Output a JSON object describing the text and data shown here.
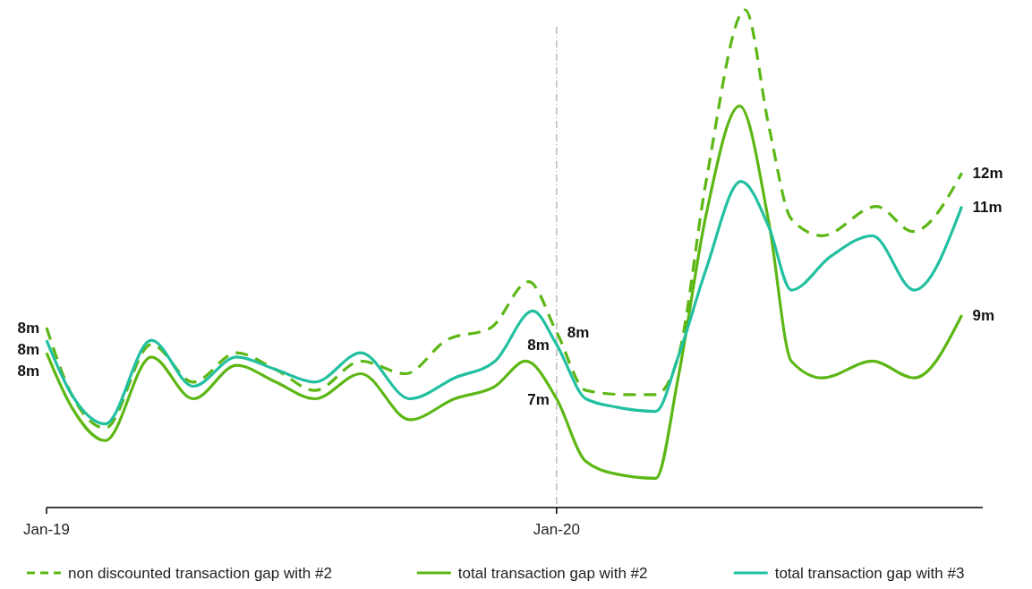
{
  "chart_data": {
    "type": "line",
    "tick_labels": "x",
    "legend": "bottom",
    "x": [
      "2019-01-01",
      "2019-01-19",
      "2019-02-12",
      "2019-03-17",
      "2019-04-16",
      "2019-05-17",
      "2019-06-14",
      "2019-07-12",
      "2019-08-14",
      "2019-09-15",
      "2019-10-14",
      "2019-11-15",
      "2019-12-12",
      "2020-01-01",
      "2020-01-22",
      "2020-02-20",
      "2020-03-12",
      "2020-03-28",
      "2020-04-17",
      "2020-05-15",
      "2020-06-01",
      "2020-06-17",
      "2020-07-09",
      "2020-08-17",
      "2020-09-12",
      "2020-10-17"
    ],
    "xlim": [
      "2019-01-01",
      "2020-11-01"
    ],
    "xticks": [
      {
        "value": "2019-01-01",
        "label": "Jan-19"
      },
      {
        "value": "2020-01-01",
        "label": "Jan-20"
      }
    ],
    "ref_lines": [
      {
        "axis": "x",
        "value": "2020-01-01",
        "label": null,
        "color": "#bbbbbb",
        "line_style": "dashed"
      }
    ],
    "series": [
      {
        "name": "non discounted transaction gap with #2",
        "color": "#5cb714",
        "line_style": "dashed",
        "values": [
          8.3,
          6.7,
          5.9,
          7.9,
          7.0,
          7.7,
          7.3,
          6.8,
          7.5,
          7.2,
          8.0,
          8.3,
          9.4,
          8.2,
          6.8,
          6.7,
          6.7,
          7.6,
          11.8,
          15.9,
          13.1,
          10.9,
          10.5,
          11.2,
          10.6,
          12.0
        ],
        "value_labels": [
          "8m",
          null,
          null,
          null,
          null,
          null,
          null,
          null,
          null,
          null,
          null,
          null,
          null,
          "8m",
          null,
          null,
          null,
          null,
          null,
          null,
          null,
          null,
          null,
          null,
          null,
          "12m"
        ]
      },
      {
        "name": "total transaction gap with #2",
        "color": "#5cb714",
        "line_style": "solid",
        "x": [
          "2019-01-01",
          "2019-01-19",
          "2019-02-12",
          "2019-03-17",
          "2019-04-16",
          "2019-05-17",
          "2019-06-14",
          "2019-07-12",
          "2019-08-14",
          "2019-09-18",
          "2019-10-20",
          "2019-11-18",
          "2019-12-10",
          "2020-01-01",
          "2020-01-22",
          "2020-02-13",
          "2020-03-12",
          "2020-03-28",
          "2020-04-17",
          "2020-05-11",
          "2020-06-01",
          "2020-06-17",
          "2020-07-09",
          "2020-08-14",
          "2020-09-13",
          "2020-10-17"
        ],
        "values": [
          7.7,
          6.4,
          5.6,
          7.6,
          6.6,
          7.4,
          7.0,
          6.6,
          7.2,
          6.1,
          6.6,
          6.9,
          7.5,
          6.6,
          5.1,
          4.8,
          4.7,
          7.1,
          11.0,
          13.6,
          10.8,
          7.5,
          7.1,
          7.5,
          7.1,
          8.6
        ],
        "value_labels": [
          "8m",
          null,
          null,
          null,
          null,
          null,
          null,
          null,
          null,
          null,
          null,
          null,
          null,
          "7m",
          null,
          null,
          null,
          null,
          null,
          null,
          null,
          null,
          null,
          null,
          null,
          "9m"
        ]
      },
      {
        "name": "total transaction gap with #3",
        "color": "#22c0a0",
        "line_style": "solid",
        "x": [
          "2019-01-01",
          "2019-01-19",
          "2019-02-12",
          "2019-03-17",
          "2019-04-16",
          "2019-05-17",
          "2019-06-14",
          "2019-07-12",
          "2019-08-14",
          "2019-09-18",
          "2019-10-20",
          "2019-11-18",
          "2019-12-15",
          "2020-01-01",
          "2020-01-22",
          "2020-02-13",
          "2020-03-12",
          "2020-03-28",
          "2020-04-17",
          "2020-05-12",
          "2020-06-01",
          "2020-06-17",
          "2020-07-15",
          "2020-08-14",
          "2020-09-13",
          "2020-10-17"
        ],
        "values": [
          8.0,
          6.7,
          6.0,
          8.0,
          6.9,
          7.6,
          7.3,
          7.0,
          7.7,
          6.6,
          7.1,
          7.5,
          8.7,
          7.9,
          6.6,
          6.4,
          6.3,
          7.6,
          9.7,
          11.8,
          10.7,
          9.2,
          10.0,
          10.5,
          9.2,
          11.2
        ],
        "value_labels": [
          "8m",
          null,
          null,
          null,
          null,
          null,
          null,
          null,
          null,
          null,
          null,
          null,
          null,
          "8m",
          null,
          null,
          null,
          null,
          null,
          null,
          null,
          null,
          null,
          null,
          null,
          "11m"
        ]
      }
    ]
  }
}
